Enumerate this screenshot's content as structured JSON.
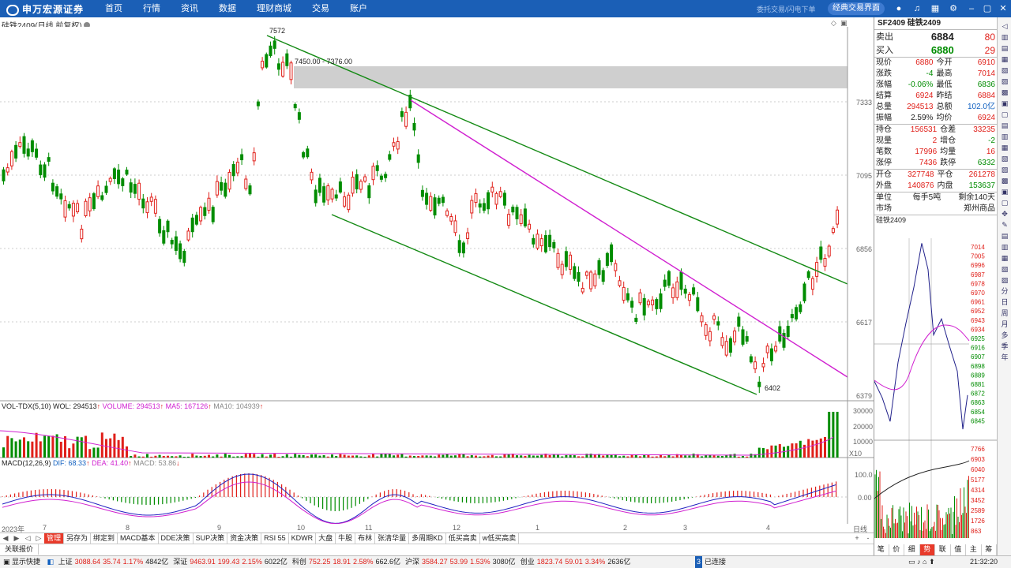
{
  "topbar": {
    "logo": "申万宏源证券",
    "nav": [
      "首页",
      "行情",
      "资讯",
      "数据",
      "理财商城",
      "交易",
      "账户"
    ],
    "status_text": "委托交易/闪电下单",
    "mode_button": "经典交易界面"
  },
  "chart": {
    "name": "硅铁2409(日线 前复权)",
    "annotations": {
      "high": "7572",
      "low": "6402",
      "range_label": "7450.00 - 7376.00"
    },
    "price_axis": [
      "7333",
      "7095",
      "6856",
      "6617",
      "6379"
    ],
    "vol_header": {
      "name": "VOL-TDX(5,10)",
      "wol": "WOL: 294513",
      "volume": "VOLUME: 294513",
      "ma5": "MA5: 167126",
      "ma10": "MA10: 104939"
    },
    "vol_axis": [
      "30000",
      "20000",
      "10000",
      "X10"
    ],
    "macd_header": {
      "name": "MACD(12,26,9)",
      "dif": "DIF: 68.33",
      "dea": "DEA: 41.40",
      "macd": "MACD: 53.86"
    },
    "macd_axis": [
      "100.0",
      "0.00"
    ],
    "time_axis": [
      "2023年",
      "7",
      "8",
      "9",
      "10",
      "11",
      "12",
      "1",
      "2",
      "3",
      "4"
    ],
    "time_axis_right": "日线",
    "colors": {
      "up": "#e0201a",
      "down": "#008c00",
      "channel": "#148a14",
      "trend": "#d020d0"
    }
  },
  "tabs": [
    "管理",
    "另存为",
    "绑定到",
    "MACD基本",
    "DDE决策",
    "SUP决策",
    "资金决策",
    "RSI 55",
    "KDWR",
    "大盘",
    "牛股",
    "布林",
    "张清华量",
    "多周期KD",
    "低买高卖",
    "w低买高卖"
  ],
  "active_tab": "管理",
  "linked_label": "关联报价",
  "quote": {
    "title": "SF2409 硅铁2409",
    "sell_label": "卖出",
    "sell_price": "6884",
    "sell_qty": "80",
    "buy_label": "买入",
    "buy_price": "6880",
    "buy_qty": "29",
    "rows1": [
      [
        "现价",
        "6880",
        "今开",
        "6910"
      ],
      [
        "涨跌",
        "-4",
        "最高",
        "7014"
      ],
      [
        "涨幅",
        "-0.06%",
        "最低",
        "6836"
      ],
      [
        "结算",
        "6924",
        "昨结",
        "6884"
      ],
      [
        "总量",
        "294513",
        "总额",
        "102.0亿"
      ],
      [
        "振幅",
        "2.59%",
        "均价",
        "6924"
      ]
    ],
    "rows2": [
      [
        "持仓",
        "156531",
        "仓差",
        "33235"
      ],
      [
        "现量",
        "2",
        "增仓",
        "-2"
      ],
      [
        "笔数",
        "17996",
        "均量",
        "16"
      ],
      [
        "涨停",
        "7436",
        "跌停",
        "6332"
      ]
    ],
    "rows3": [
      [
        "开仓",
        "327748",
        "平仓",
        "261278"
      ],
      [
        "外盘",
        "140876",
        "内盘",
        "153637"
      ]
    ],
    "unit_label": "单位",
    "unit_value": "每手5吨",
    "remain_value": "剩余140天",
    "market_label": "市场",
    "market_value": "郑州商品",
    "mini_title": "硅铁2409",
    "mini_axis": [
      "7014",
      "7005",
      "6996",
      "6987",
      "6978",
      "6970",
      "6961",
      "6952",
      "6943",
      "6934",
      "6925",
      "6916",
      "6907",
      "6898",
      "6889",
      "6881",
      "6872",
      "6863",
      "6854",
      "6845"
    ],
    "mini_vol_axis": [
      "7766",
      "6903",
      "6040",
      "5177",
      "4314",
      "3452",
      "2589",
      "1726",
      "863"
    ],
    "bottom_tabs": [
      "笔",
      "价",
      "细",
      "势",
      "联",
      "值",
      "主",
      "筹"
    ],
    "active_bottom": "势"
  },
  "right_strip": [
    "分",
    "日",
    "周",
    "月",
    "多",
    "季",
    "年"
  ],
  "statusbar": {
    "quick": "显示快捷",
    "items": [
      {
        "label": "上证",
        "value": "3088.64",
        "chg": "35.74",
        "pct": "1.17%",
        "amt": "4842亿"
      },
      {
        "label": "深证",
        "value": "9463.91",
        "chg": "199.43",
        "pct": "2.15%",
        "amt": "6022亿"
      },
      {
        "label": "科创",
        "value": "752.25",
        "chg": "18.91",
        "pct": "2.58%",
        "amt": "662.6亿"
      },
      {
        "label": "沪深",
        "value": "3584.27",
        "chg": "53.99",
        "pct": "1.53%",
        "amt": "3080亿"
      },
      {
        "label": "创业",
        "value": "1823.74",
        "chg": "59.01",
        "pct": "3.34%",
        "amt": "2636亿"
      }
    ],
    "connected": "已连接",
    "time": "21:32:20"
  }
}
